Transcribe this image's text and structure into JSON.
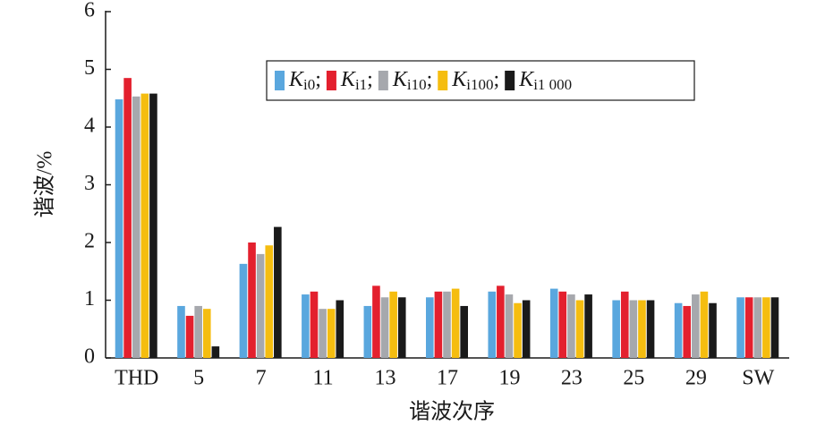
{
  "chart_data": {
    "type": "bar",
    "xlabel": "谐波次序",
    "ylabel": "谐波/%",
    "categories": [
      "THD",
      "5",
      "7",
      "11",
      "13",
      "17",
      "19",
      "23",
      "25",
      "29",
      "SW"
    ],
    "series": [
      {
        "name": "Ki0;",
        "color": "#5aa7de",
        "values": [
          4.48,
          0.9,
          1.63,
          1.1,
          0.9,
          1.05,
          1.15,
          1.2,
          1.0,
          0.95,
          1.05
        ]
      },
      {
        "name": "Ki1;",
        "color": "#e3202e",
        "values": [
          4.85,
          0.73,
          2.0,
          1.15,
          1.25,
          1.15,
          1.25,
          1.15,
          1.15,
          0.9,
          1.05
        ]
      },
      {
        "name": "Ki10;",
        "color": "#a6a8ad",
        "values": [
          4.53,
          0.9,
          1.8,
          0.85,
          1.05,
          1.15,
          1.1,
          1.1,
          1.0,
          1.1,
          1.05
        ]
      },
      {
        "name": "Ki100;",
        "color": "#f5bd10",
        "values": [
          4.58,
          0.85,
          1.95,
          0.85,
          1.15,
          1.2,
          0.95,
          1.0,
          1.0,
          1.15,
          1.05
        ]
      },
      {
        "name": "Ki1 000",
        "color": "#1a1a1a",
        "values": [
          4.58,
          0.2,
          2.27,
          1.0,
          1.05,
          0.9,
          1.0,
          1.1,
          1.0,
          0.95,
          1.05
        ]
      }
    ],
    "ylim": [
      0,
      6
    ],
    "yticks": [
      0,
      1,
      2,
      3,
      4,
      5,
      6
    ]
  }
}
